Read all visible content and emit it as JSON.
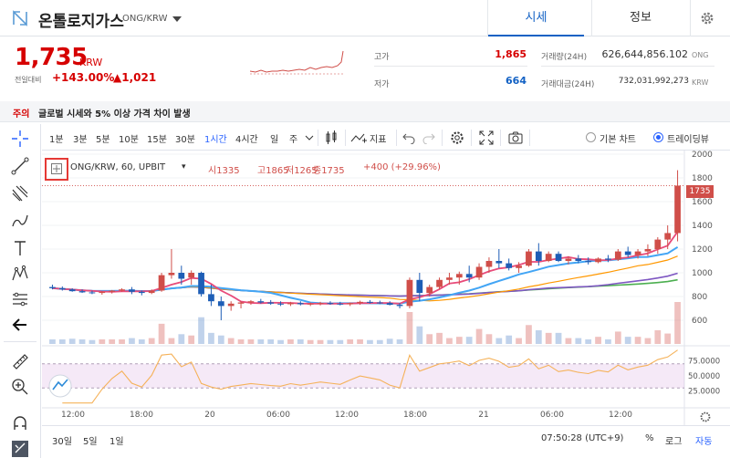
{
  "header": {
    "coin_name": "온톨로지가스",
    "pair": "ONG/KRW",
    "tab_sise": "시세",
    "tab_info": "정보"
  },
  "price": {
    "current": "1,735",
    "unit": "KRW",
    "change_label": "전일대비",
    "change_pct": "+143.00%",
    "change_amt": "▲1,021"
  },
  "stats": {
    "high_label": "고가",
    "high": "1,865",
    "low_label": "저가",
    "low": "664",
    "volume_label": "거래량(24H)",
    "volume": "626,644,856.102",
    "volume_unit": "ONG",
    "amount_label": "거래대금(24H)",
    "amount": "732,031,992,273",
    "amount_unit": "KRW"
  },
  "colors": {
    "up": "#d04e49",
    "down": "#1e5eb6",
    "accent": "#1261c4"
  },
  "notice": {
    "tag": "주의",
    "text": "글로벌 시세와 5% 이상 가격 차이 발생"
  },
  "toolbar": {
    "intervals": [
      "1분",
      "3분",
      "5분",
      "10분",
      "15분",
      "30분",
      "1시간",
      "4시간",
      "일",
      "주"
    ],
    "active_interval": "1시간",
    "indicators_label": "지표",
    "basic_chart_label": "기본 차트",
    "tradingview_label": "트레이딩뷰"
  },
  "legend": {
    "title": "ONG/KRW, 60, UPBIT",
    "open": "시1335",
    "high": "고1865",
    "low": "저1265",
    "close": "종1735",
    "change": "+400 (+29.96%)"
  },
  "last_price_tag": "1735",
  "bottom": {
    "ranges": [
      "30일",
      "5일",
      "1일"
    ],
    "clock": "07:50:28 (UTC+9)",
    "percent": "%",
    "log": "로그",
    "auto": "자동"
  },
  "chart_data": {
    "type": "candlestick",
    "price_axis": {
      "ticks": [
        "2000",
        "1800",
        "1600",
        "1400",
        "1200",
        "1000",
        "800",
        "600"
      ],
      "ylim": [
        400,
        2000
      ]
    },
    "rsi_axis": {
      "ticks": [
        "75.0000",
        "50.0000",
        "25.0000"
      ],
      "ylim": [
        0,
        100
      ],
      "bands": [
        30,
        70
      ]
    },
    "time_ticks": [
      "12:00",
      "18:00",
      "20",
      "06:00",
      "12:00",
      "18:00",
      "21",
      "06:00",
      "12:00"
    ],
    "candles": [
      [
        880,
        900,
        860,
        870
      ],
      [
        870,
        885,
        850,
        860
      ],
      [
        860,
        870,
        840,
        845
      ],
      [
        845,
        860,
        830,
        835
      ],
      [
        835,
        850,
        820,
        830
      ],
      [
        830,
        845,
        815,
        840
      ],
      [
        840,
        855,
        825,
        850
      ],
      [
        850,
        870,
        840,
        860
      ],
      [
        860,
        880,
        820,
        840
      ],
      [
        840,
        850,
        810,
        830
      ],
      [
        830,
        860,
        820,
        850
      ],
      [
        850,
        1000,
        840,
        980
      ],
      [
        980,
        1200,
        950,
        1000
      ],
      [
        1000,
        1060,
        900,
        950
      ],
      [
        960,
        1020,
        900,
        1000
      ],
      [
        1000,
        1010,
        800,
        820
      ],
      [
        820,
        900,
        720,
        760
      ],
      [
        760,
        800,
        600,
        720
      ],
      [
        720,
        760,
        680,
        740
      ],
      [
        740,
        760,
        700,
        750
      ],
      [
        750,
        770,
        730,
        760
      ],
      [
        760,
        780,
        740,
        750
      ],
      [
        750,
        770,
        730,
        740
      ],
      [
        740,
        760,
        720,
        735
      ],
      [
        735,
        755,
        720,
        745
      ],
      [
        745,
        760,
        725,
        735
      ],
      [
        735,
        750,
        720,
        740
      ],
      [
        740,
        755,
        725,
        745
      ],
      [
        745,
        760,
        730,
        740
      ],
      [
        740,
        755,
        725,
        735
      ],
      [
        735,
        750,
        720,
        745
      ],
      [
        745,
        765,
        730,
        755
      ],
      [
        755,
        770,
        740,
        750
      ],
      [
        750,
        765,
        735,
        745
      ],
      [
        745,
        760,
        725,
        730
      ],
      [
        730,
        745,
        700,
        720
      ],
      [
        720,
        960,
        700,
        940
      ],
      [
        940,
        1000,
        760,
        830
      ],
      [
        830,
        900,
        800,
        880
      ],
      [
        880,
        960,
        860,
        940
      ],
      [
        940,
        1000,
        900,
        960
      ],
      [
        960,
        1010,
        900,
        990
      ],
      [
        990,
        1060,
        920,
        960
      ],
      [
        960,
        1080,
        940,
        1050
      ],
      [
        1050,
        1130,
        1000,
        1100
      ],
      [
        1100,
        1200,
        1040,
        1080
      ],
      [
        1080,
        1120,
        1020,
        1040
      ],
      [
        1040,
        1090,
        1000,
        1060
      ],
      [
        1060,
        1200,
        1050,
        1180
      ],
      [
        1180,
        1250,
        1060,
        1100
      ],
      [
        1100,
        1180,
        1090,
        1160
      ],
      [
        1160,
        1180,
        1090,
        1100
      ],
      [
        1100,
        1140,
        1070,
        1120
      ],
      [
        1120,
        1150,
        1080,
        1100
      ],
      [
        1100,
        1130,
        1070,
        1090
      ],
      [
        1090,
        1130,
        1080,
        1120
      ],
      [
        1120,
        1150,
        1090,
        1110
      ],
      [
        1110,
        1200,
        1100,
        1180
      ],
      [
        1180,
        1220,
        1130,
        1150
      ],
      [
        1150,
        1200,
        1120,
        1180
      ],
      [
        1180,
        1240,
        1140,
        1200
      ],
      [
        1200,
        1300,
        1160,
        1280
      ],
      [
        1280,
        1400,
        1200,
        1335
      ],
      [
        1335,
        1865,
        1265,
        1735
      ]
    ]
  }
}
